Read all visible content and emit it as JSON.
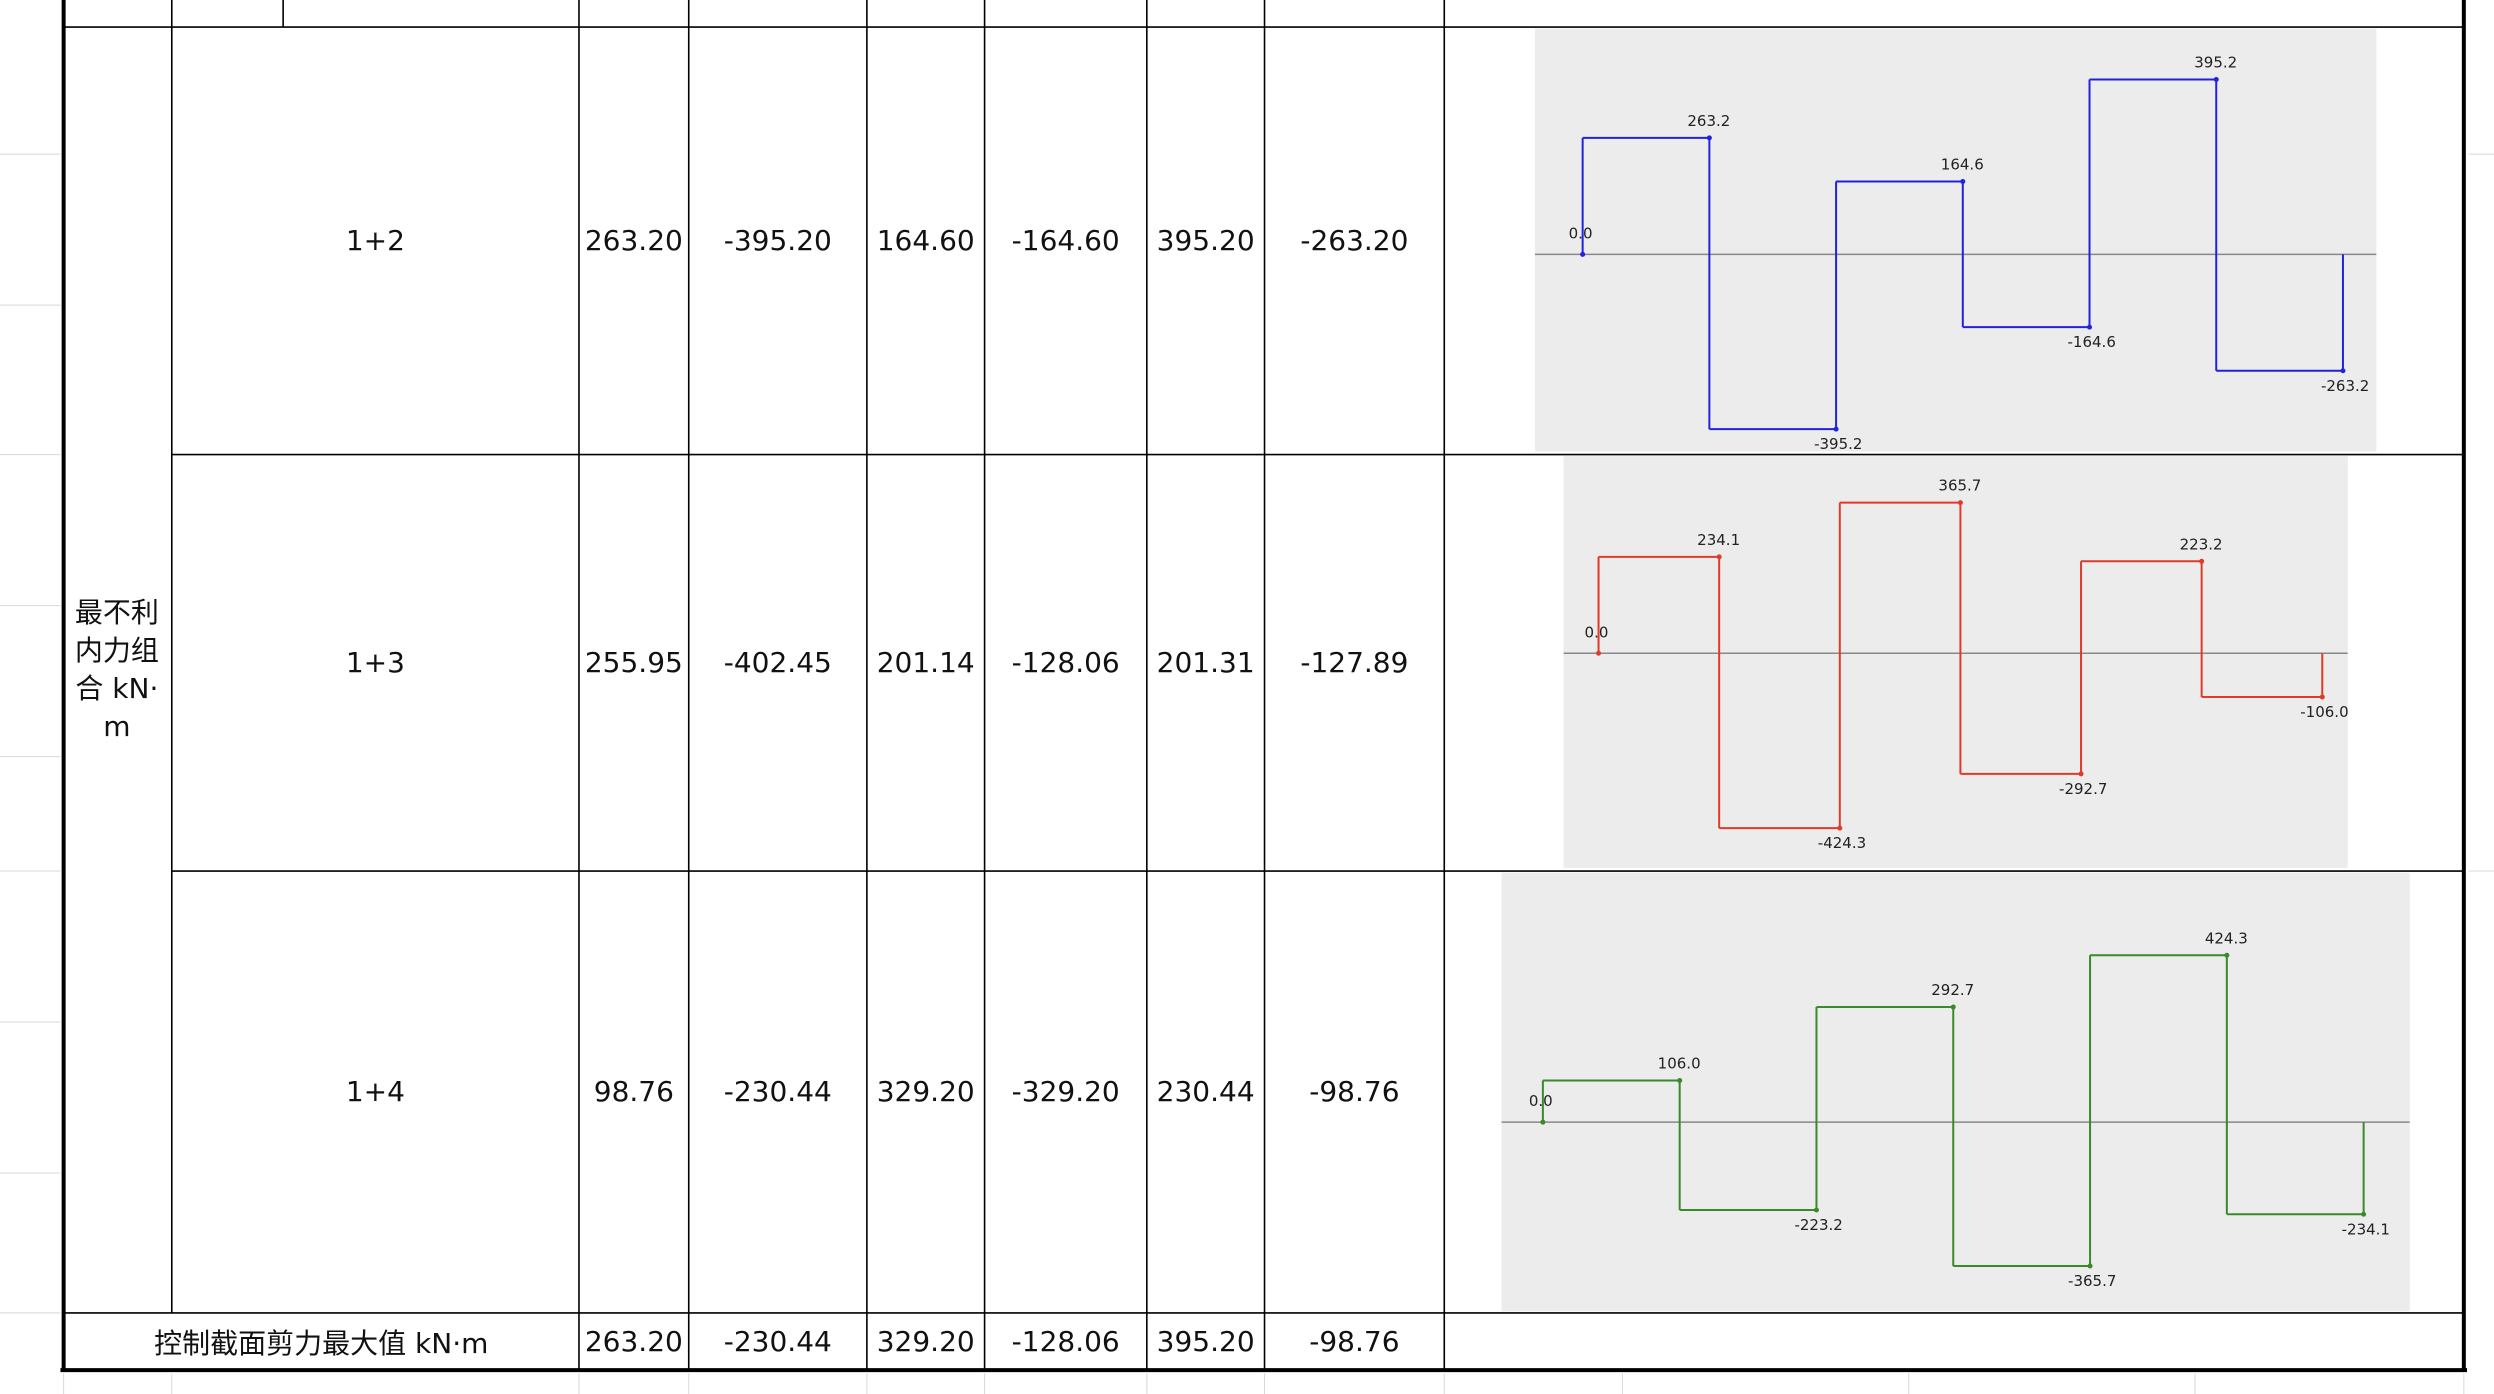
{
  "table": {
    "group_label": "最不利内力组合 kN·m",
    "rows": [
      {
        "label": "1+2",
        "values": [
          "263.20",
          "-395.20",
          "164.60",
          "-164.60",
          "395.20",
          "-263.20"
        ]
      },
      {
        "label": "1+3",
        "values": [
          "255.95",
          "-402.45",
          "201.14",
          "-128.06",
          "201.31",
          "-127.89"
        ]
      },
      {
        "label": "1+4",
        "values": [
          "98.76",
          "-230.44",
          "329.20",
          "-329.20",
          "230.44",
          "-98.76"
        ]
      }
    ],
    "footer": {
      "label": "控制截面剪力最大值 kN·m",
      "values": [
        "263.20",
        "-230.44",
        "329.20",
        "-128.06",
        "395.20",
        "-98.76"
      ]
    }
  },
  "diagrams": [
    {
      "color": "#2222dd",
      "values": [
        0.0,
        263.2,
        -395.2,
        164.6,
        -164.6,
        395.2,
        -263.2
      ],
      "value_labels": [
        "0.0",
        "263.2",
        "-395.2",
        "164.6",
        "-164.6",
        "395.2",
        "-263.2"
      ]
    },
    {
      "color": "#e03a2a",
      "values": [
        0.0,
        234.1,
        -424.3,
        365.7,
        -292.7,
        223.2,
        -106.0
      ],
      "value_labels": [
        "0.0",
        "234.1",
        "-424.3",
        "365.7",
        "-292.7",
        "223.2",
        "-106.0"
      ]
    },
    {
      "color": "#3a8a2a",
      "values": [
        0.0,
        106.0,
        -223.2,
        292.7,
        -365.7,
        424.3,
        -234.1
      ],
      "value_labels": [
        "0.0",
        "106.0",
        "-223.2",
        "292.7",
        "-365.7",
        "424.3",
        "-234.1"
      ]
    }
  ]
}
